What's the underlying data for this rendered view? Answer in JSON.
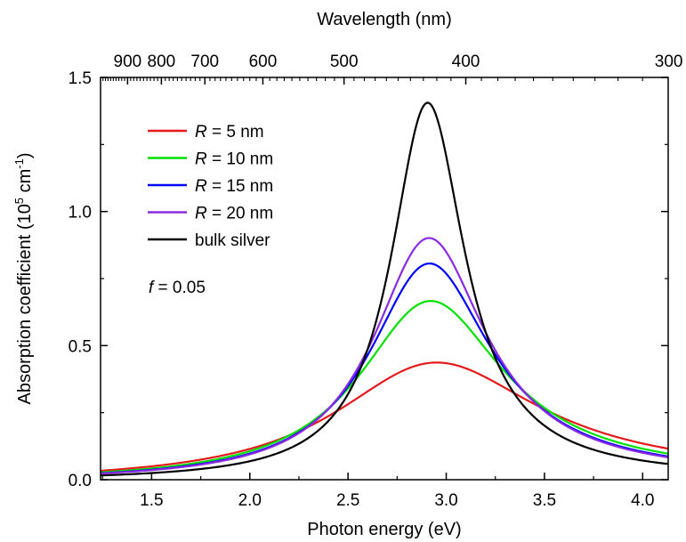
{
  "chart_data": {
    "type": "line",
    "xlabel": "Photon energy (eV)",
    "ylabel": "Absorption coefficient (10",
    "ylabel_sup1": "5",
    "ylabel_mid": " cm",
    "ylabel_sup2": "-1",
    "ylabel_end": ")",
    "top_xlabel": "Wavelength (nm)",
    "xlim": [
      1.24,
      4.13
    ],
    "ylim": [
      0.0,
      1.5
    ],
    "x_ticks": [
      1.5,
      2.0,
      2.5,
      3.0,
      3.5,
      4.0
    ],
    "x_tick_labels": [
      "1.5",
      "2.0",
      "2.5",
      "3.0",
      "3.5",
      "4.0"
    ],
    "y_ticks": [
      0.0,
      0.5,
      1.0,
      1.5
    ],
    "y_tick_labels": [
      "0.0",
      "0.5",
      "1.0",
      "1.5"
    ],
    "top_ticks_nm": [
      900,
      800,
      700,
      600,
      500,
      400,
      300
    ],
    "top_tick_labels": [
      "900",
      "800",
      "700",
      "600",
      "500",
      "400",
      "300"
    ],
    "annotation": {
      "italic": "f",
      "text": " = 0.05"
    },
    "legend_position": "top-left",
    "series": [
      {
        "name": "R =   5 nm",
        "name_italic": "R",
        "name_rest": " =   5 nm",
        "color": "#e41a1c",
        "peak_x": 2.91,
        "peak_y": 0.435,
        "gamma": 0.64,
        "x": [
          1.24,
          1.5,
          2.0,
          2.5,
          2.91,
          3.3,
          3.6,
          4.13
        ],
        "y": [
          0.032,
          0.06,
          0.155,
          0.32,
          0.435,
          0.36,
          0.27,
          0.165
        ]
      },
      {
        "name": "R = 10 nm",
        "name_italic": "R",
        "name_rest": " = 10 nm",
        "color": "#00e000",
        "peak_x": 2.9,
        "peak_y": 0.665,
        "gamma": 0.45,
        "x": [
          1.24,
          1.5,
          2.0,
          2.5,
          2.9,
          3.3,
          3.6,
          4.13
        ],
        "y": [
          0.022,
          0.045,
          0.125,
          0.36,
          0.665,
          0.41,
          0.25,
          0.14
        ]
      },
      {
        "name": "R = 15 nm",
        "name_italic": "R",
        "name_rest": " = 15 nm",
        "color": "#0000ff",
        "peak_x": 2.9,
        "peak_y": 0.805,
        "gamma": 0.38,
        "x": [
          1.24,
          1.5,
          2.0,
          2.5,
          2.9,
          3.3,
          3.6,
          4.13
        ],
        "y": [
          0.018,
          0.04,
          0.11,
          0.37,
          0.805,
          0.4,
          0.24,
          0.12
        ]
      },
      {
        "name": "R = 20 nm",
        "name_italic": "R",
        "name_rest": " = 20 nm",
        "color": "#8a2be2",
        "peak_x": 2.9,
        "peak_y": 0.9,
        "gamma": 0.35,
        "x": [
          1.24,
          1.5,
          2.0,
          2.5,
          2.9,
          3.3,
          3.6,
          4.13
        ],
        "y": [
          0.016,
          0.035,
          0.1,
          0.38,
          0.9,
          0.41,
          0.23,
          0.11
        ]
      },
      {
        "name": "bulk silver",
        "name_italic": "",
        "name_rest": "bulk silver",
        "color": "#000000",
        "peak_x": 2.9,
        "peak_y": 1.405,
        "gamma": 0.23,
        "x": [
          1.24,
          1.5,
          2.0,
          2.5,
          2.9,
          3.3,
          3.6,
          4.13
        ],
        "y": [
          0.01,
          0.02,
          0.06,
          0.32,
          1.405,
          0.34,
          0.17,
          0.075
        ]
      }
    ]
  }
}
